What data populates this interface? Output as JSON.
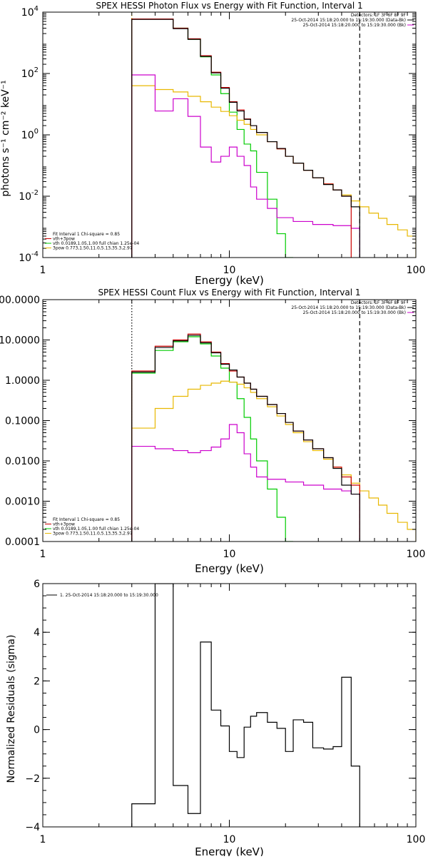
{
  "chart_data": [
    {
      "type": "line",
      "title": "SPEX HESSI Photon Flux vs Energy with Fit Function, Interval 1",
      "xlabel": "Energy (keV)",
      "ylabel": "photons s⁻¹ cm⁻² keV⁻¹",
      "xscale": "log",
      "yscale": "log",
      "xlim": [
        1,
        100
      ],
      "ylim": [
        0.0001,
        10000
      ],
      "grid": false,
      "x_ticks": [
        {
          "v": 1,
          "label": "1"
        },
        {
          "v": 10,
          "label": "10"
        },
        {
          "v": 100,
          "label": "100"
        }
      ],
      "y_ticks": [
        {
          "v": 0.0001,
          "base": "10",
          "exp": "-4"
        },
        {
          "v": 0.01,
          "base": "10",
          "exp": "-2"
        },
        {
          "v": 1,
          "base": "10",
          "exp": "0"
        },
        {
          "v": 100,
          "base": "10",
          "exp": "2"
        },
        {
          "v": 10000,
          "base": "10",
          "exp": "4"
        }
      ],
      "vlines": [
        {
          "x": 3,
          "color": "#e8b800",
          "style": "dotted"
        },
        {
          "x": 50,
          "color": "#000000",
          "style": "dashed"
        }
      ],
      "legend_top_right": [
        {
          "text": "Detectors: 1F 3F 6F 8F 9F",
          "color": "#000000"
        },
        {
          "text": "25-Oct-2014 15:18:20.000 to 15:19:30.000 (Data-Bk)",
          "color": "#000000"
        },
        {
          "text": "25-Oct-2014 15:18:20.000 to 15:19:30.000 (Bk)",
          "color": "#cc00cc"
        }
      ],
      "legend_bottom_left": [
        {
          "text": "Fit Interval 1    Chi-square = 0.85",
          "color": "#000000"
        },
        {
          "text": "vth+3pow",
          "color": "#cc0000"
        },
        {
          "text": "vth 0.0189,1.05,1.00  full chian 1.25e-04",
          "color": "#00cc00"
        },
        {
          "text": "3pow 0.773,1.50,11.0,5.13,35.3,2.97",
          "color": "#e8b800"
        }
      ],
      "bin_edges": [
        3,
        4,
        5,
        6,
        7,
        8,
        9,
        10,
        11,
        12,
        13,
        14,
        16,
        18,
        20,
        22,
        25,
        28,
        32,
        36,
        40,
        45,
        50,
        56,
        63,
        70,
        80,
        90,
        100
      ],
      "series": [
        {
          "color": "#00cc00",
          "values": [
            6000,
            6000,
            3000,
            1300,
            350,
            90,
            22,
            5.5,
            1.5,
            0.5,
            0.3,
            0.06,
            0.008,
            0.0006,
            5e-05
          ]
        },
        {
          "color": "#e8b800",
          "values": [
            40,
            30,
            25,
            18,
            12,
            8,
            5.8,
            4.2,
            3.0,
            2.2,
            1.5,
            1.0,
            0.6,
            0.35,
            0.2,
            0.12,
            0.07,
            0.04,
            0.025,
            0.016,
            0.011,
            0.007,
            0.0045,
            0.0028,
            0.0019,
            0.0012,
            0.0008,
            0.0005
          ]
        },
        {
          "color": "#cc00cc",
          "values": [
            90,
            6,
            15,
            4,
            0.4,
            0.13,
            0.2,
            0.4,
            0.2,
            0.1,
            0.02,
            0.008,
            0.004,
            0.002,
            0.002,
            0.0015,
            0.0015,
            0.0012,
            0.0012,
            0.0011,
            0.0011,
            0.0009
          ]
        },
        {
          "color": "#cc0000",
          "values": [
            6000,
            6000,
            3000,
            1350,
            380,
            110,
            35,
            12,
            6.5,
            3.3,
            2.0,
            1.2,
            0.6,
            0.35,
            0.2,
            0.12,
            0.07,
            0.04,
            0.025,
            0.016,
            0.01
          ]
        },
        {
          "color": "#000000",
          "values": [
            5800,
            5800,
            2900,
            1300,
            360,
            105,
            33,
            11.5,
            6.0,
            3.2,
            2.0,
            1.2,
            0.6,
            0.36,
            0.2,
            0.12,
            0.07,
            0.04,
            0.024,
            0.016,
            0.01,
            0.0045
          ]
        }
      ]
    },
    {
      "type": "line",
      "title": "SPEX HESSI Count Flux vs Energy with Fit Function, Interval 1",
      "xlabel": "Energy (keV)",
      "ylabel": "",
      "xscale": "log",
      "yscale": "log",
      "xlim": [
        1,
        100
      ],
      "ylim": [
        0.0001,
        100
      ],
      "grid": false,
      "x_ticks": [
        {
          "v": 1,
          "label": "1"
        },
        {
          "v": 10,
          "label": "10"
        },
        {
          "v": 100,
          "label": "100"
        }
      ],
      "y_ticks": [
        {
          "v": 0.0001,
          "label": "0.0001"
        },
        {
          "v": 0.001,
          "label": "0.0010"
        },
        {
          "v": 0.01,
          "label": "0.0100"
        },
        {
          "v": 0.1,
          "label": "0.1000"
        },
        {
          "v": 1,
          "label": "1.0000"
        },
        {
          "v": 10,
          "label": "10.0000"
        },
        {
          "v": 100,
          "label": "100.0000"
        }
      ],
      "vlines": [
        {
          "x": 3,
          "color": "#000000",
          "style": "dotted"
        },
        {
          "x": 50,
          "color": "#000000",
          "style": "dashed"
        }
      ],
      "legend_top_right": [
        {
          "text": "Detectors: 1F 3F 6F 8F 9F",
          "color": "#000000"
        },
        {
          "text": "25-Oct-2014 15:18:20.000 to 15:19:30.000 (Data-Bk)",
          "color": "#000000"
        },
        {
          "text": "25-Oct-2014 15:18:20.000 to 15:19:30.000 (Bk)",
          "color": "#cc00cc"
        }
      ],
      "legend_bottom_left": [
        {
          "text": "Fit Interval 1    Chi-square = 0.85",
          "color": "#000000"
        },
        {
          "text": "vth+3pow",
          "color": "#cc0000"
        },
        {
          "text": "vth 0.0189,1.05,1.00  full chian 1.25e-04",
          "color": "#00cc00"
        },
        {
          "text": "3pow 0.773,1.50,11.0,5.13,35.3,2.97",
          "color": "#e8b800"
        }
      ],
      "bin_edges": [
        3,
        4,
        5,
        6,
        7,
        8,
        9,
        10,
        11,
        12,
        13,
        14,
        16,
        18,
        20,
        22,
        25,
        28,
        32,
        36,
        40,
        45,
        50,
        56,
        63,
        70,
        80,
        90,
        100
      ],
      "series": [
        {
          "color": "#00cc00",
          "values": [
            1.5,
            5.5,
            9,
            12,
            8,
            4,
            2.0,
            0.9,
            0.35,
            0.12,
            0.035,
            0.01,
            0.002,
            0.0004,
            8e-05
          ]
        },
        {
          "color": "#e8b800",
          "values": [
            0.065,
            0.2,
            0.4,
            0.6,
            0.75,
            0.85,
            0.95,
            0.9,
            0.8,
            0.65,
            0.5,
            0.35,
            0.22,
            0.13,
            0.08,
            0.05,
            0.03,
            0.018,
            0.011,
            0.007,
            0.0045,
            0.0028,
            0.0018,
            0.0012,
            0.0008,
            0.0005,
            0.0003,
            0.0002
          ]
        },
        {
          "color": "#cc00cc",
          "values": [
            0.023,
            0.02,
            0.018,
            0.016,
            0.018,
            0.022,
            0.035,
            0.08,
            0.05,
            0.015,
            0.007,
            0.004,
            0.0035,
            0.0035,
            0.003,
            0.003,
            0.0025,
            0.0025,
            0.002,
            0.002,
            0.0018,
            0.0015
          ]
        },
        {
          "color": "#cc0000",
          "values": [
            1.7,
            7,
            10,
            14,
            9,
            5,
            2.6,
            1.7,
            1.2,
            0.85,
            0.6,
            0.4,
            0.25,
            0.15,
            0.09,
            0.055,
            0.033,
            0.02,
            0.012,
            0.007,
            0.004,
            0.0025
          ]
        },
        {
          "color": "#000000",
          "values": [
            1.6,
            6.5,
            9.5,
            13,
            8.5,
            4.8,
            2.5,
            1.8,
            1.2,
            0.85,
            0.6,
            0.4,
            0.25,
            0.15,
            0.09,
            0.055,
            0.033,
            0.02,
            0.012,
            0.0065,
            0.0025,
            0.0015
          ]
        }
      ]
    },
    {
      "type": "line",
      "title": "",
      "xlabel": "Energy (keV)",
      "ylabel": "Normalized Residuals (sigma)",
      "xscale": "log",
      "yscale": "linear",
      "xlim": [
        1,
        100
      ],
      "ylim": [
        -4,
        6
      ],
      "grid": false,
      "x_ticks": [
        {
          "v": 1,
          "label": "1"
        },
        {
          "v": 10,
          "label": "10"
        },
        {
          "v": 100,
          "label": "100"
        }
      ],
      "y_ticks": [
        {
          "v": -4,
          "label": "−4"
        },
        {
          "v": -2,
          "label": "−2"
        },
        {
          "v": 0,
          "label": "0"
        },
        {
          "v": 2,
          "label": "2"
        },
        {
          "v": 4,
          "label": "4"
        },
        {
          "v": 6,
          "label": "6"
        }
      ],
      "legend_top_left": [
        {
          "text": "1. 25-Oct-2014 15:18:20.000 to 15:19:30.000",
          "color": "#000000"
        }
      ],
      "bin_edges": [
        3,
        4,
        5,
        6,
        7,
        8,
        9,
        10,
        11,
        12,
        13,
        14,
        16,
        18,
        20,
        22,
        25,
        28,
        32,
        36,
        40,
        45,
        50
      ],
      "series": [
        {
          "color": "#000000",
          "values": [
            -3.05,
            6.0,
            -2.3,
            -3.45,
            3.6,
            0.8,
            0.15,
            -0.9,
            -1.15,
            0.1,
            0.55,
            0.7,
            0.3,
            0.05,
            -0.9,
            0.4,
            0.3,
            -0.75,
            -0.8,
            -0.7,
            2.15,
            -1.5
          ]
        }
      ]
    }
  ]
}
